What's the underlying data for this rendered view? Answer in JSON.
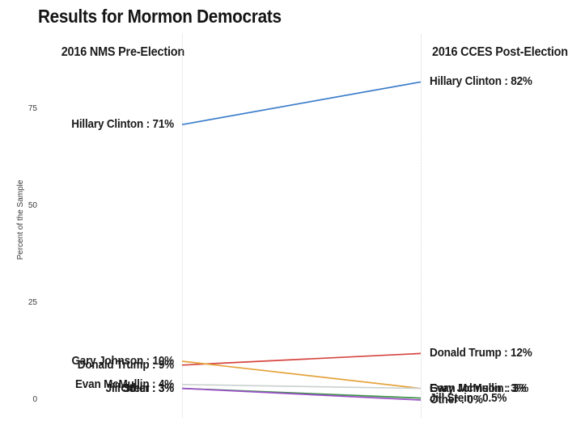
{
  "title": "Results for Mormon Democrats",
  "columns": {
    "left": "2016 NMS Pre-Election",
    "right": "2016 CCES Post-Election"
  },
  "y_axis": {
    "label": "Percent of the Sample",
    "ticks": [
      0,
      25,
      50,
      75
    ]
  },
  "chart_data": {
    "type": "line",
    "subtype": "slopegraph",
    "title": "Results for Mormon Democrats",
    "xlabel": "",
    "ylabel": "Percent of the Sample",
    "categories": [
      "2016 NMS Pre-Election",
      "2016 CCES Post-Election"
    ],
    "ylim": [
      0,
      87
    ],
    "yticks": [
      0,
      25,
      50,
      75
    ],
    "grid": false,
    "legend": "none (direct labels at line endpoints)",
    "series": [
      {
        "name": "Hillary Clinton",
        "values": [
          71,
          82
        ],
        "color": "#3d7ecb",
        "labels": [
          "Hillary Clinton : 71%",
          "Hillary Clinton : 82%"
        ]
      },
      {
        "name": "Donald Trump",
        "values": [
          9,
          12
        ],
        "color": "#d64540",
        "labels": [
          "Donald Trump : 9%",
          "Donald Trump : 12%"
        ]
      },
      {
        "name": "Gary Johnson",
        "values": [
          10,
          3
        ],
        "color": "#e5a33c",
        "labels": [
          "Gary Johnson : 10%",
          "Gary Johnson : 3%"
        ]
      },
      {
        "name": "Evan McMullin",
        "values": [
          4,
          3
        ],
        "color": "#ccd3d1",
        "labels": [
          "Evan McMullin : 4%",
          "Evan McMullin : 3%"
        ]
      },
      {
        "name": "Jill Stein",
        "values": [
          3,
          0.5
        ],
        "color": "#3d9348",
        "labels": [
          "Jill Stein : 3%",
          "Jill Stein : 0.5%"
        ]
      },
      {
        "name": "Other",
        "values": [
          3,
          0
        ],
        "color": "#9b51c8",
        "labels": [
          "Other : 3%",
          "Other : 0%"
        ]
      }
    ]
  }
}
